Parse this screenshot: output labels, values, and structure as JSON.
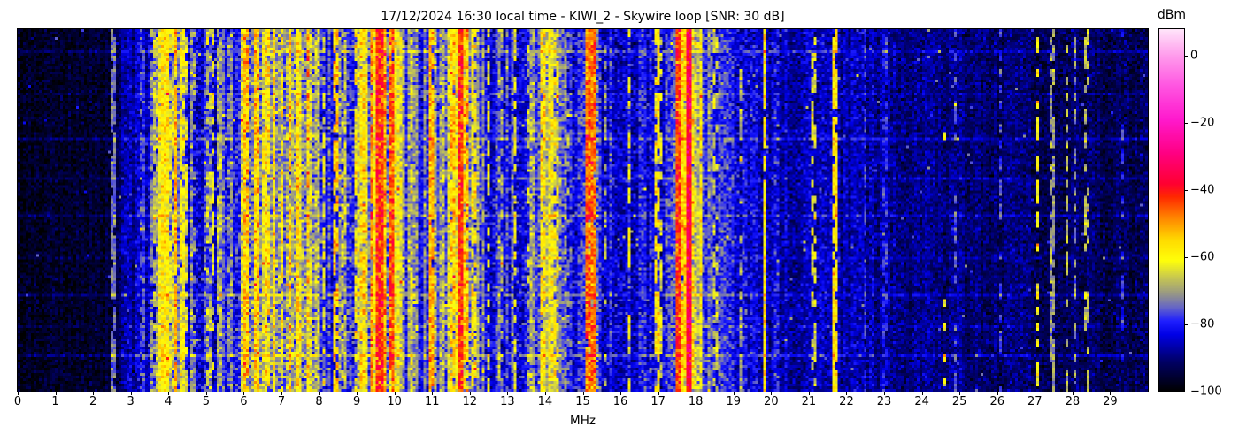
{
  "chart_data": {
    "type": "heatmap",
    "subtype": "radio-spectrum-waterfall",
    "title": "17/12/2024 16:30 local time - KIWI_2 - Skywire loop [SNR: 30 dB]",
    "title_parts": {
      "datetime": "17/12/2024 16:30 local time",
      "receiver": "KIWI_2",
      "antenna": "Skywire loop",
      "snr_db": 30
    },
    "xlabel": "MHz",
    "x_range_mhz": [
      0,
      30
    ],
    "x_ticks": [
      "0",
      "1",
      "2",
      "3",
      "4",
      "5",
      "6",
      "7",
      "8",
      "9",
      "10",
      "11",
      "12",
      "13",
      "14",
      "15",
      "16",
      "17",
      "18",
      "19",
      "20",
      "21",
      "22",
      "23",
      "24",
      "25",
      "26",
      "27",
      "28",
      "29"
    ],
    "y_axis": {
      "ticks": [],
      "meaning": "time (unlabeled)"
    },
    "grid": false,
    "colorbar": {
      "label": "dBm",
      "side": "right",
      "vmin": -100,
      "vmax": 8,
      "tick_values": [
        0,
        -20,
        -40,
        -60,
        -80,
        -100
      ],
      "tick_labels": [
        "0",
        "−20",
        "−40",
        "−60",
        "−80",
        "−100"
      ],
      "colormap_stops": [
        [
          -100,
          "#000000"
        ],
        [
          -91,
          "#000066"
        ],
        [
          -83,
          "#0000e6"
        ],
        [
          -79,
          "#1e1eff"
        ],
        [
          -75,
          "#6464c8"
        ],
        [
          -71,
          "#969687"
        ],
        [
          -66,
          "#c8c850"
        ],
        [
          -61,
          "#ffff0a"
        ],
        [
          -55,
          "#ffdc00"
        ],
        [
          -48,
          "#ff8200"
        ],
        [
          -42,
          "#ff2800"
        ],
        [
          -38,
          "#ff0032"
        ],
        [
          -29,
          "#ff0082"
        ],
        [
          -19,
          "#ff19cd"
        ],
        [
          -9,
          "#ff55e1"
        ],
        [
          0,
          "#ff9bec"
        ],
        [
          8,
          "#ffe6fa"
        ]
      ]
    },
    "noise_floor_profile_format": [
      "mhz",
      "mean_dbm",
      "column_spread_db",
      "cell_noise_db"
    ],
    "noise_floor_profile": [
      [
        0.0,
        -97,
        1.5,
        2.5
      ],
      [
        2.3,
        -96,
        1.5,
        2.5
      ],
      [
        2.7,
        -91,
        2.5,
        3
      ],
      [
        3.2,
        -86,
        4,
        3.5
      ],
      [
        3.6,
        -81,
        6,
        4
      ],
      [
        4.5,
        -78,
        7,
        4
      ],
      [
        5.0,
        -82,
        5,
        4
      ],
      [
        5.7,
        -78,
        6,
        4
      ],
      [
        6.0,
        -67,
        9,
        5
      ],
      [
        7.4,
        -64,
        9,
        5
      ],
      [
        7.9,
        -71,
        7,
        5
      ],
      [
        8.3,
        -79,
        5,
        4
      ],
      [
        8.8,
        -75,
        6,
        4.5
      ],
      [
        9.2,
        -68,
        9,
        5
      ],
      [
        9.9,
        -67,
        9,
        5
      ],
      [
        10.4,
        -76,
        6,
        4
      ],
      [
        11.0,
        -77,
        6,
        4
      ],
      [
        11.5,
        -69,
        7,
        5
      ],
      [
        11.8,
        -64,
        8,
        5
      ],
      [
        12.1,
        -70,
        6,
        4.5
      ],
      [
        12.5,
        -80,
        5,
        4
      ],
      [
        13.4,
        -80,
        5,
        4
      ],
      [
        13.9,
        -71,
        6,
        4.5
      ],
      [
        14.2,
        -69,
        6,
        4.5
      ],
      [
        14.5,
        -79,
        5,
        4
      ],
      [
        15.0,
        -82,
        4,
        4
      ],
      [
        15.2,
        -72,
        5,
        4.5
      ],
      [
        15.5,
        -82,
        4,
        4
      ],
      [
        16.6,
        -83,
        4,
        4
      ],
      [
        17.4,
        -80,
        4.5,
        4
      ],
      [
        17.8,
        -64,
        6,
        5
      ],
      [
        18.1,
        -73,
        4,
        4
      ],
      [
        18.5,
        -79,
        3.5,
        4
      ],
      [
        19.2,
        -83,
        3,
        4
      ],
      [
        20.2,
        -86,
        2.5,
        3.5
      ],
      [
        22.0,
        -87,
        2.5,
        3.5
      ],
      [
        24.0,
        -89,
        2,
        3
      ],
      [
        26.0,
        -91,
        2,
        3
      ],
      [
        28.5,
        -92,
        1.8,
        3
      ],
      [
        30.0,
        -93,
        1.5,
        3
      ]
    ],
    "signal_format": [
      "mhz",
      "width_mhz",
      "peak_dbm",
      "duty_cycle"
    ],
    "signals": [
      [
        2.53,
        0.06,
        -74,
        0.8
      ],
      [
        3.33,
        0.05,
        -77,
        0.6
      ],
      [
        3.56,
        0.06,
        -73,
        0.8
      ],
      [
        3.68,
        0.07,
        -69,
        0.85
      ],
      [
        3.8,
        0.06,
        -61,
        0.9
      ],
      [
        3.9,
        0.09,
        -58,
        1
      ],
      [
        4.06,
        0.05,
        -65,
        0.8
      ],
      [
        4.18,
        0.05,
        -52,
        0.9
      ],
      [
        4.34,
        0.07,
        -62,
        0.85
      ],
      [
        4.48,
        0.05,
        -64,
        0.7
      ],
      [
        4.65,
        0.04,
        -71,
        0.6
      ],
      [
        5.06,
        0.04,
        -67,
        0.5
      ],
      [
        5.17,
        0.04,
        -63,
        0.55
      ],
      [
        5.37,
        0.05,
        -69,
        0.9
      ],
      [
        5.62,
        0.04,
        -73,
        0.6
      ],
      [
        6.07,
        0.05,
        -54,
        0.85
      ],
      [
        6.32,
        0.05,
        -55,
        0.8
      ],
      [
        6.62,
        0.04,
        -59,
        0.7
      ],
      [
        6.8,
        0.05,
        -57,
        0.75
      ],
      [
        7.0,
        0.04,
        -60,
        0.7
      ],
      [
        7.22,
        0.05,
        -55,
        0.8
      ],
      [
        7.42,
        0.04,
        -59,
        0.7
      ],
      [
        7.71,
        0.05,
        -51,
        0.45
      ],
      [
        8.12,
        0.04,
        -65,
        0.6
      ],
      [
        8.46,
        0.04,
        -54,
        0.7
      ],
      [
        8.66,
        0.04,
        -67,
        0.6
      ],
      [
        8.97,
        0.04,
        -60,
        0.7
      ],
      [
        9.15,
        0.05,
        -57,
        0.75
      ],
      [
        9.41,
        0.05,
        -50,
        0.9
      ],
      [
        9.6,
        0.1,
        -42,
        1
      ],
      [
        9.76,
        0.05,
        -52,
        0.9
      ],
      [
        9.92,
        0.06,
        -45,
        0.95
      ],
      [
        10.16,
        0.04,
        -62,
        0.6
      ],
      [
        10.46,
        0.04,
        -64,
        0.6
      ],
      [
        11.0,
        0.05,
        -52,
        0.95
      ],
      [
        11.56,
        0.07,
        -56,
        0.9
      ],
      [
        11.75,
        0.09,
        -43,
        1
      ],
      [
        11.91,
        0.06,
        -54,
        0.9
      ],
      [
        12.11,
        0.04,
        -60,
        0.7
      ],
      [
        12.51,
        0.04,
        -62,
        0.6
      ],
      [
        12.8,
        0.04,
        -70,
        0.6
      ],
      [
        13.21,
        0.04,
        -62,
        0.6
      ],
      [
        13.59,
        0.04,
        -66,
        0.55
      ],
      [
        13.97,
        0.06,
        -58,
        0.85
      ],
      [
        14.13,
        0.06,
        -60,
        0.8
      ],
      [
        14.29,
        0.05,
        -62,
        0.65
      ],
      [
        14.56,
        0.04,
        -71,
        0.5
      ],
      [
        15.12,
        0.05,
        -46,
        0.95
      ],
      [
        15.26,
        0.05,
        -47,
        0.95
      ],
      [
        15.61,
        0.04,
        -70,
        0.5
      ],
      [
        16.24,
        0.05,
        -62,
        0.45
      ],
      [
        16.95,
        0.05,
        -58,
        0.7
      ],
      [
        17.06,
        0.04,
        -63,
        0.5
      ],
      [
        17.55,
        0.06,
        -44,
        1
      ],
      [
        17.7,
        0.06,
        -55,
        0.95
      ],
      [
        17.81,
        0.07,
        -36,
        1
      ],
      [
        17.93,
        0.05,
        -58,
        0.8
      ],
      [
        18.13,
        0.05,
        -60,
        0.9
      ],
      [
        18.52,
        0.04,
        -67,
        0.4
      ],
      [
        19.19,
        0.04,
        -70,
        0.5
      ],
      [
        19.83,
        0.05,
        -58,
        0.95
      ],
      [
        20.13,
        0.03,
        -79,
        0.6
      ],
      [
        21.14,
        0.04,
        -64,
        0.5
      ],
      [
        21.67,
        0.05,
        -57,
        0.9
      ],
      [
        22.51,
        0.03,
        -78,
        0.7
      ],
      [
        23.02,
        0.03,
        -80,
        0.6
      ],
      [
        24.62,
        0.04,
        -60,
        0.07
      ],
      [
        24.91,
        0.03,
        -76,
        0.5
      ],
      [
        26.1,
        0.04,
        -77,
        0.5
      ],
      [
        27.08,
        0.05,
        -61,
        0.5
      ],
      [
        27.45,
        0.05,
        -71,
        0.6
      ],
      [
        27.85,
        0.04,
        -67,
        0.4
      ],
      [
        28.08,
        0.03,
        -72,
        0.5
      ],
      [
        28.39,
        0.05,
        -66,
        0.45
      ],
      [
        29.35,
        0.03,
        -80,
        0.4
      ]
    ],
    "time_sweep_rows_format": [
      "row_fraction",
      "boost_db"
    ],
    "time_sweep_rows": [
      [
        0.061,
        5
      ],
      [
        0.175,
        3
      ],
      [
        0.3,
        6
      ],
      [
        0.41,
        4
      ],
      [
        0.512,
        5
      ],
      [
        0.625,
        3
      ],
      [
        0.73,
        5
      ],
      [
        0.815,
        3
      ],
      [
        0.9,
        6
      ]
    ],
    "speckle": {
      "probability": 0.004,
      "boost_db_min": 10,
      "boost_db_max": 18
    }
  }
}
